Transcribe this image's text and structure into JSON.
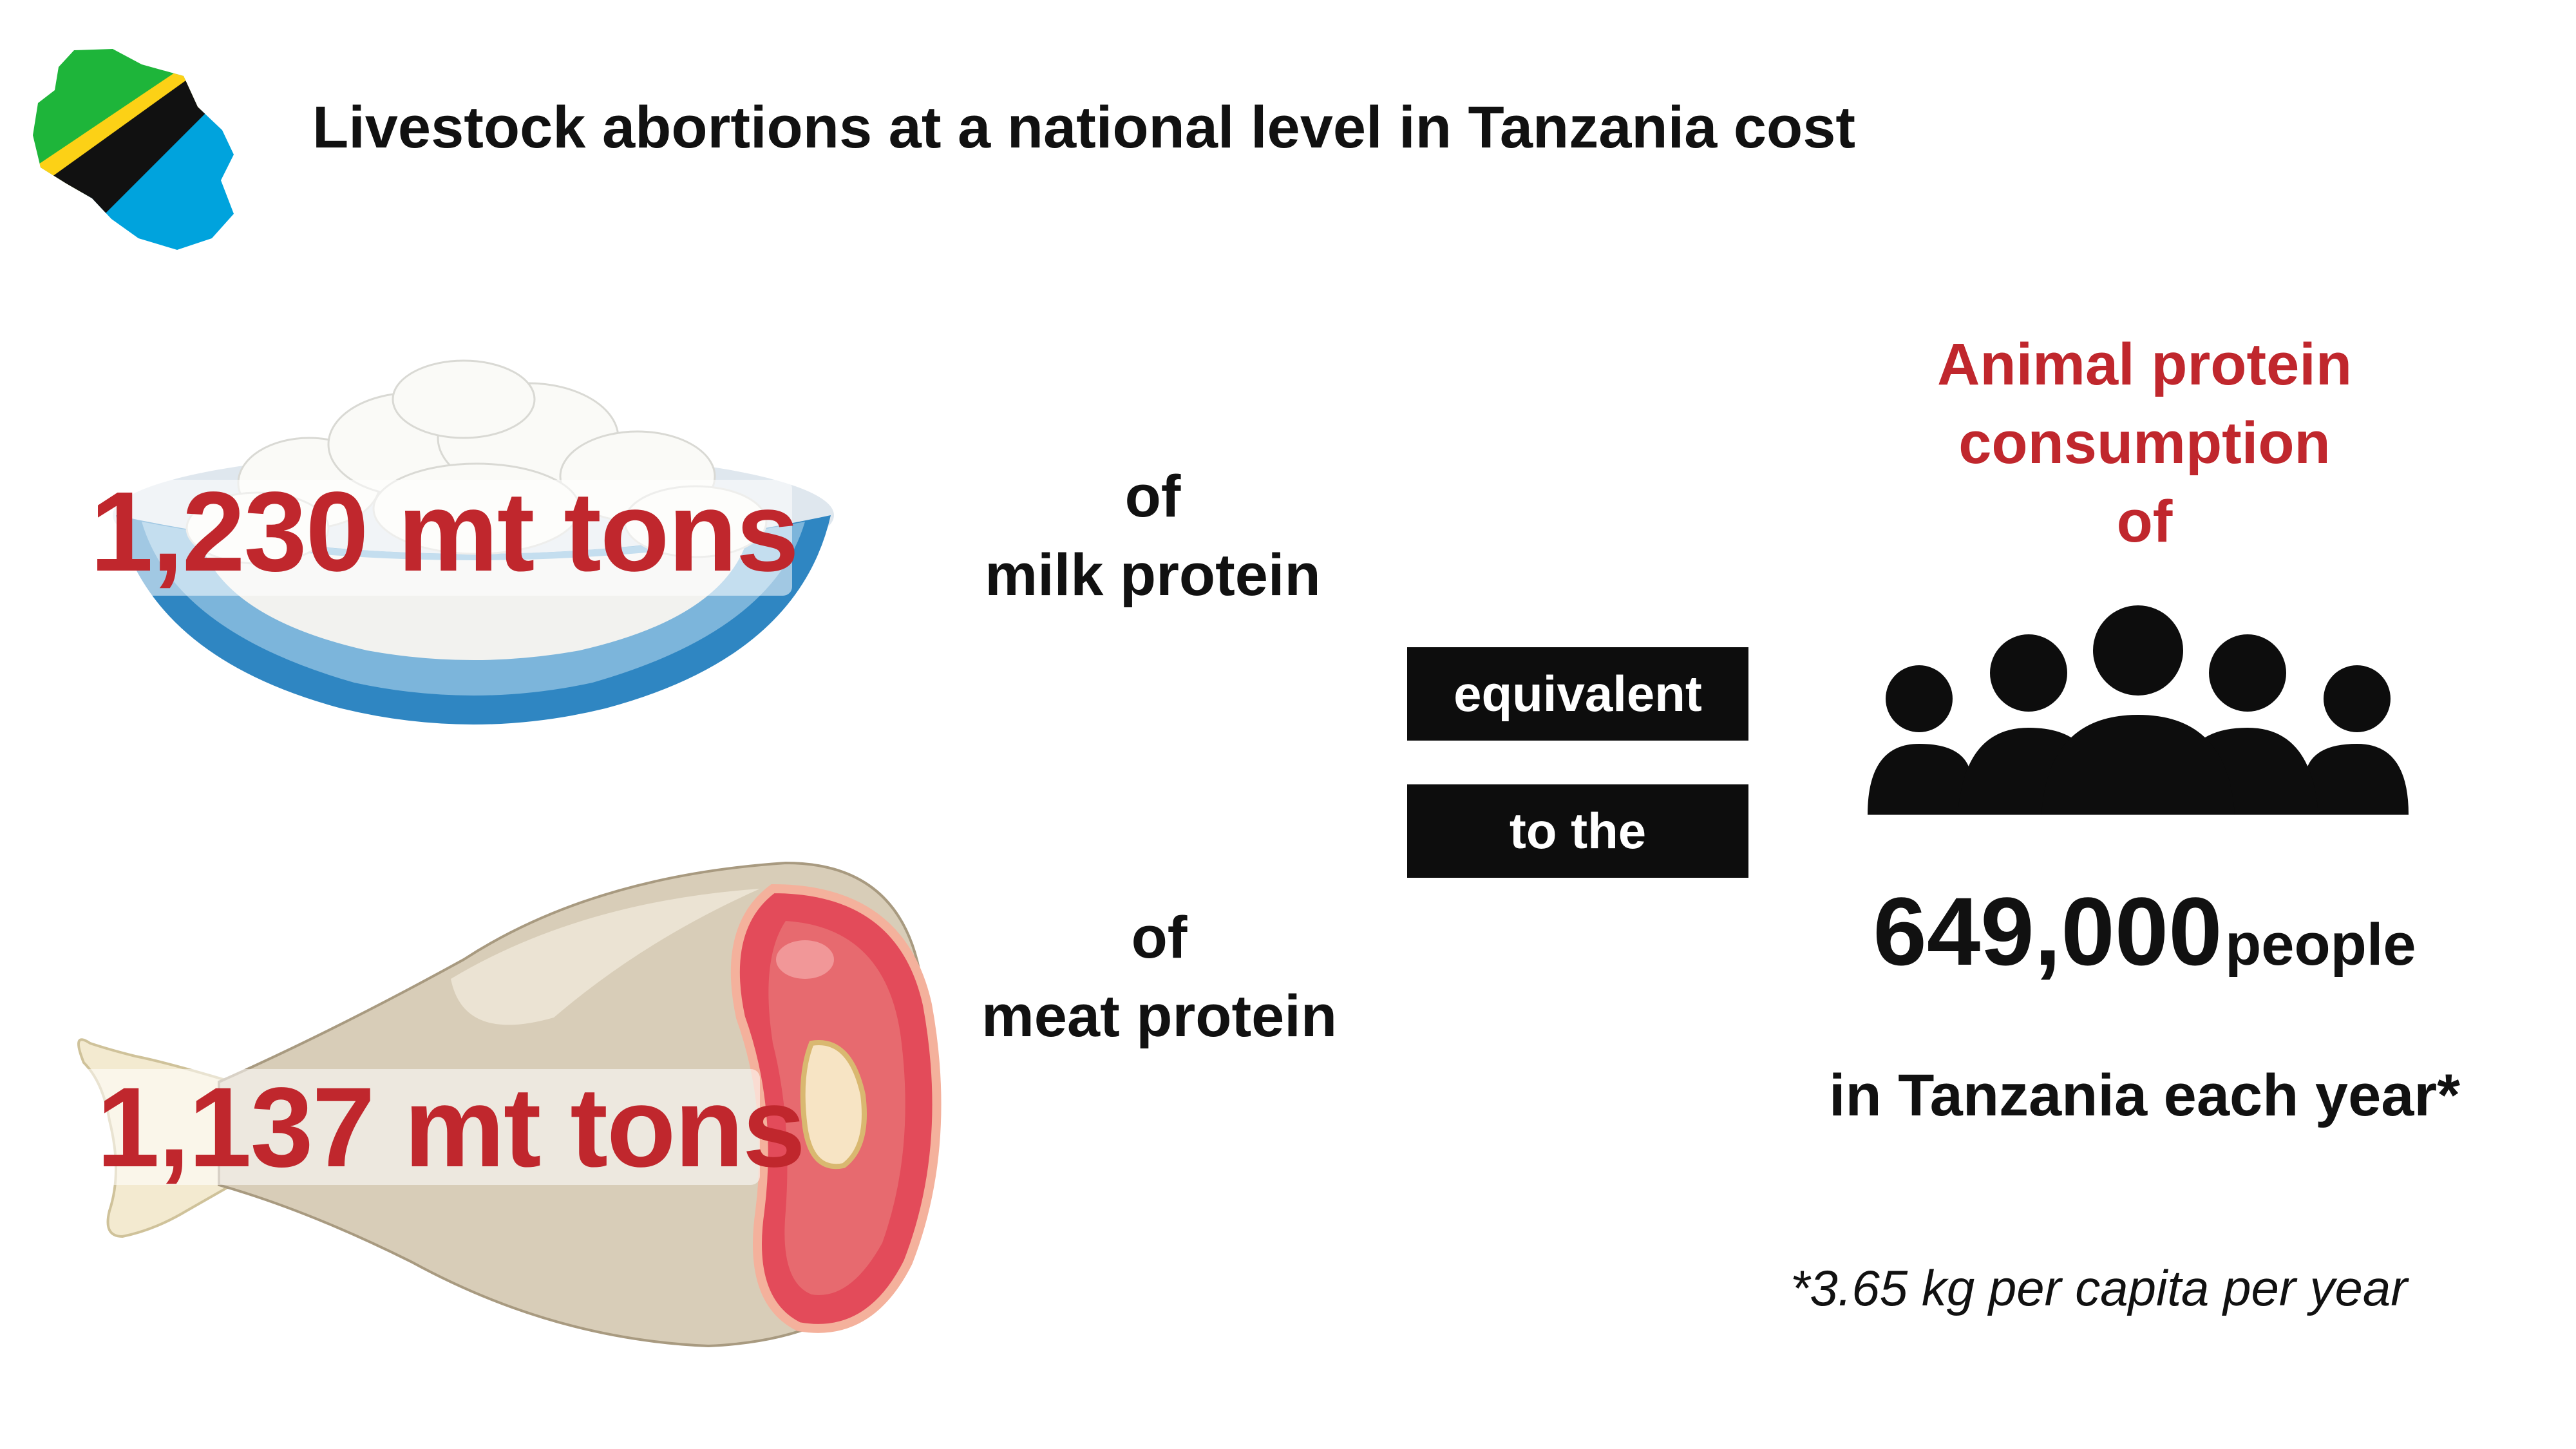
{
  "header": {
    "title": "Livestock abortions at a national level in Tanzania cost"
  },
  "milk": {
    "quantity": "1,230 mt tons",
    "prefix": "of",
    "label": "milk protein"
  },
  "meat": {
    "quantity": "1,137 mt tons",
    "prefix": "of",
    "label": "meat protein"
  },
  "connector": {
    "word1": "equivalent",
    "word2": "to the"
  },
  "result": {
    "heading_line1": "Animal protein",
    "heading_line2": "consumption",
    "heading_line3": "of",
    "number": "649,000",
    "unit": "people",
    "where": "in Tanzania each year*",
    "footnote": "*3.65 kg per capita per year"
  },
  "colors": {
    "accent_red": "#c0272d",
    "text": "#111111",
    "box": "#0d0d0d",
    "flag_green": "#1eb53a",
    "flag_blue": "#00a3dd",
    "flag_yellow": "#fcd116"
  },
  "icons": {
    "map": "tanzania-flag-map-icon",
    "bowl": "milk-protein-bowl-icon",
    "meat": "meat-leg-icon",
    "people": "people-group-icon"
  }
}
